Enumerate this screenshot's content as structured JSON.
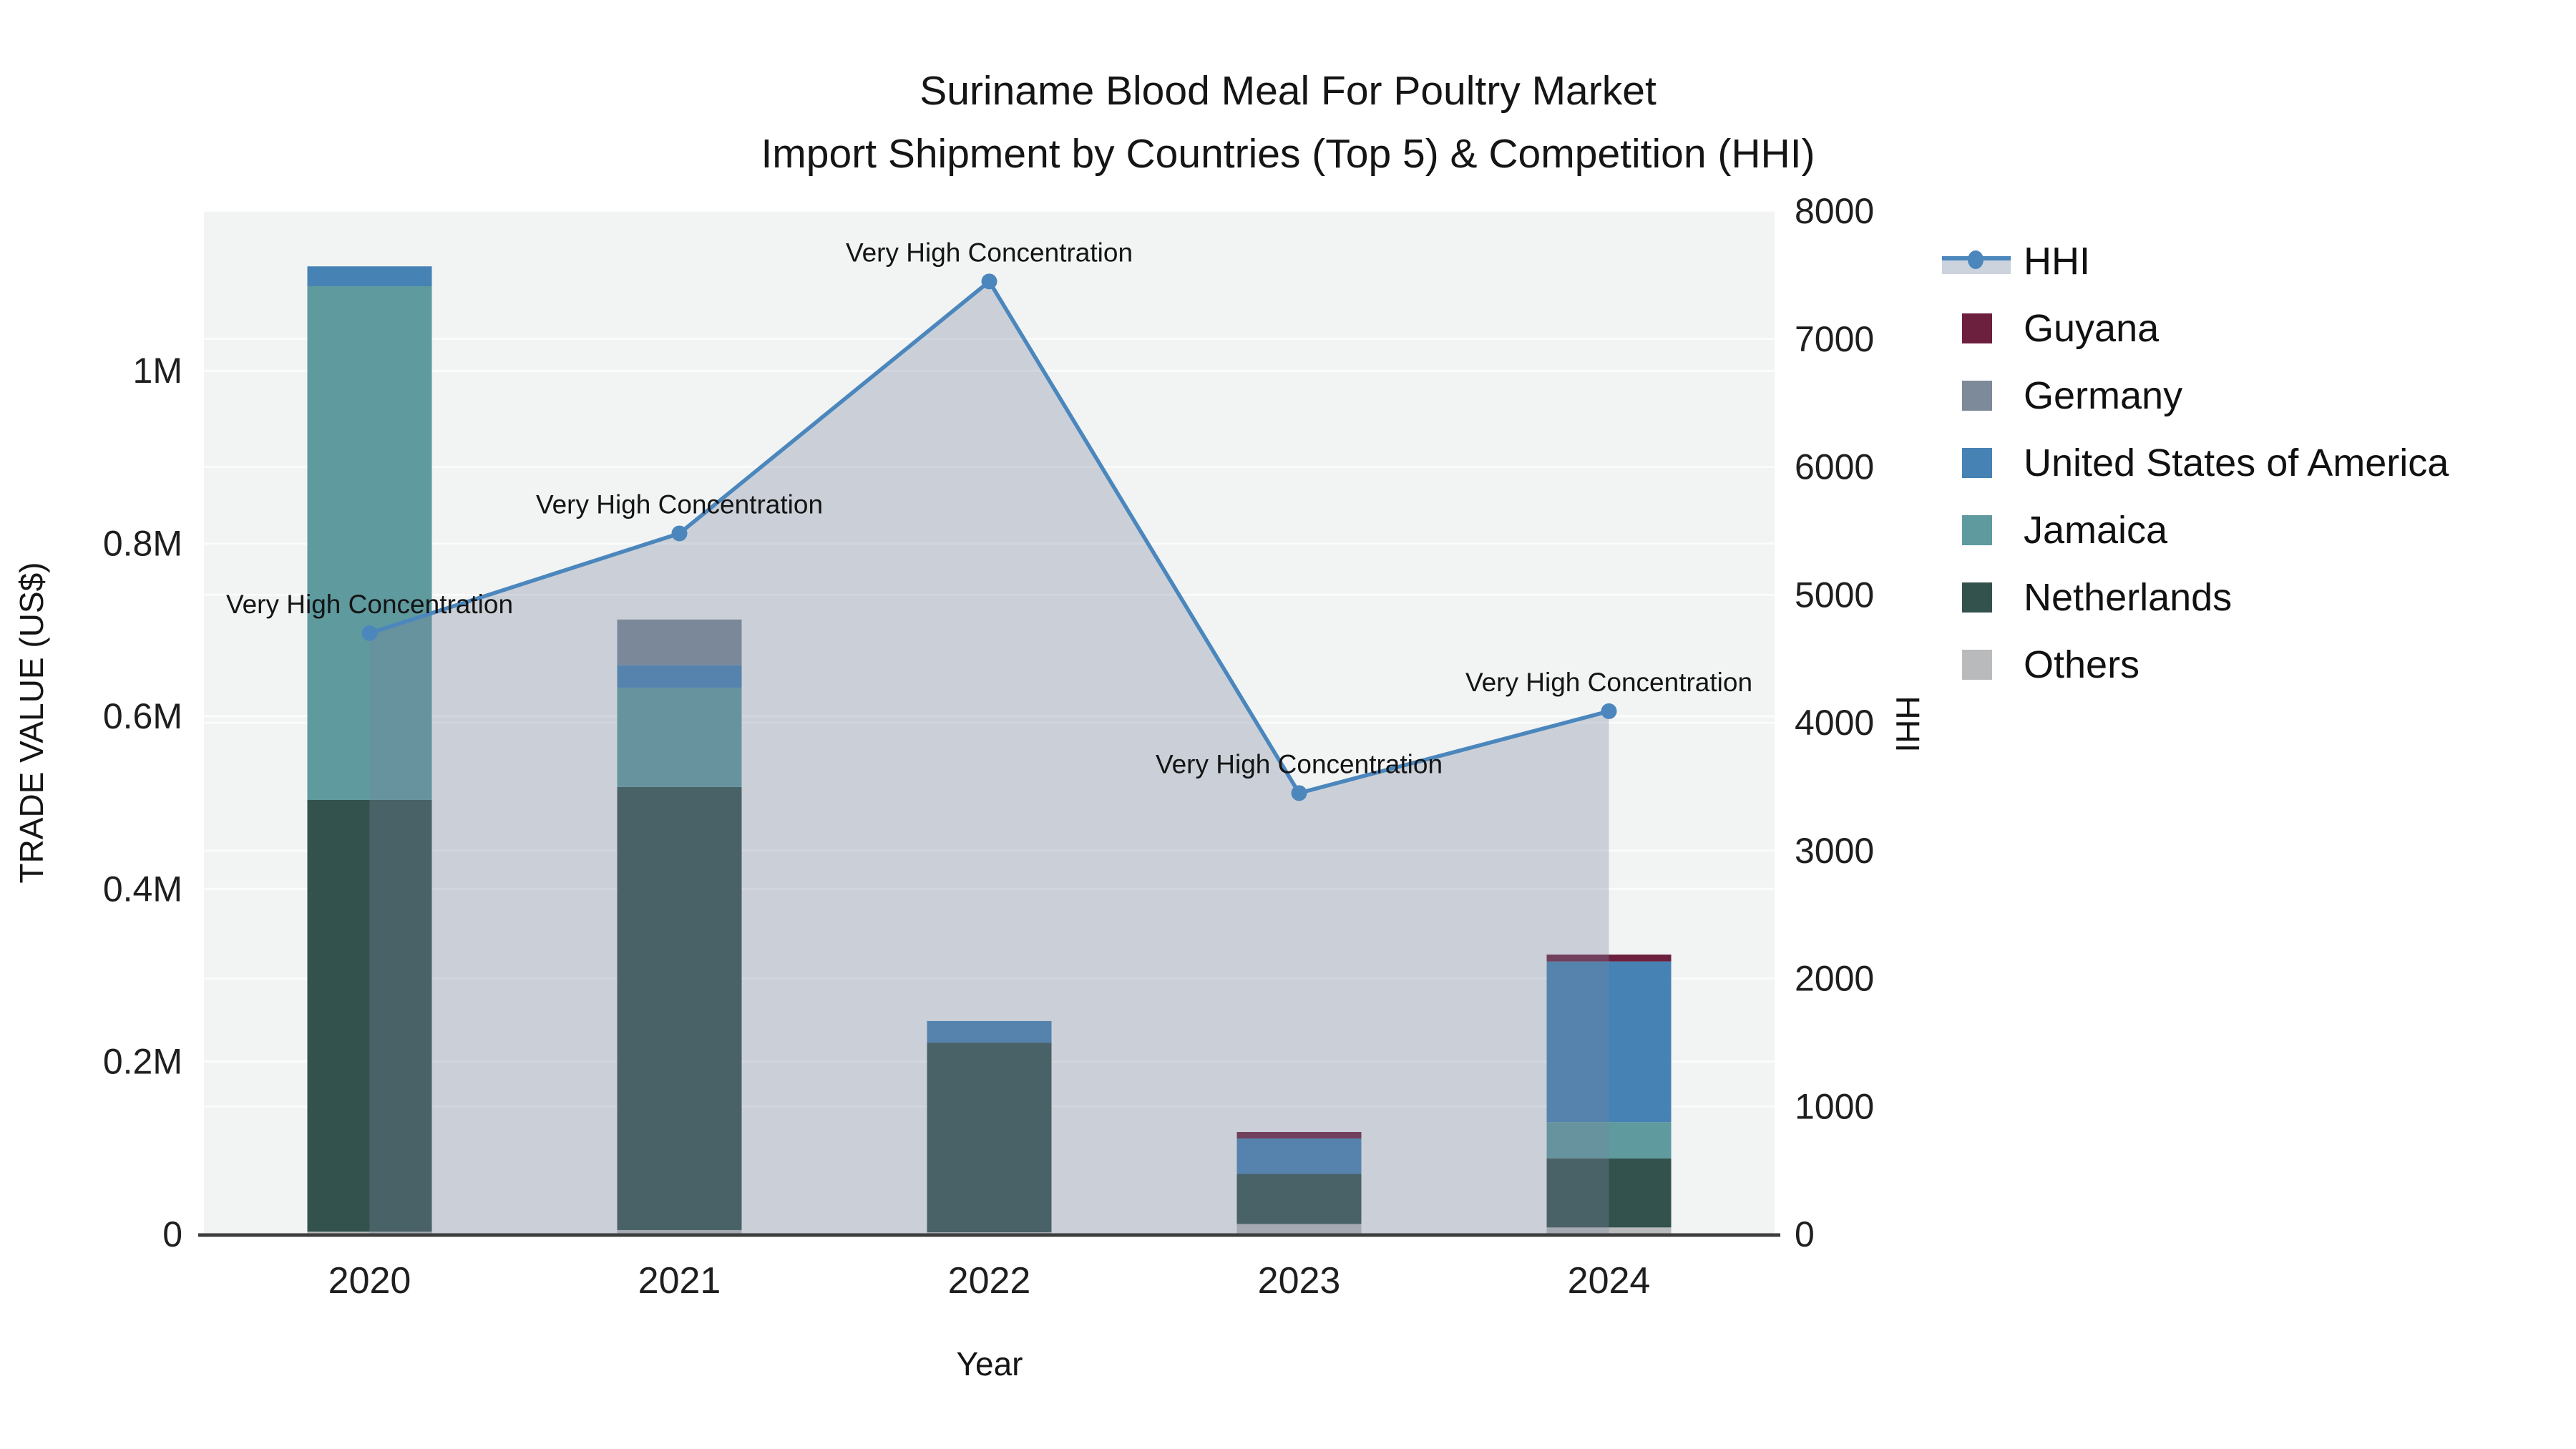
{
  "chart_data": {
    "type": "bar+line",
    "title_line1": "Suriname Blood Meal For Poultry Market",
    "title_line2": "Import Shipment by Countries (Top 5) & Competition (HHI)",
    "categories": [
      "2020",
      "2021",
      "2022",
      "2023",
      "2024"
    ],
    "x": {
      "label": "Year"
    },
    "y_left": {
      "label": "TRADE VALUE (US$)",
      "max": 1185000,
      "ticks": [
        {
          "v": 0,
          "label": "0"
        },
        {
          "v": 200000,
          "label": "0.2M"
        },
        {
          "v": 400000,
          "label": "0.4M"
        },
        {
          "v": 600000,
          "label": "0.6M"
        },
        {
          "v": 800000,
          "label": "0.8M"
        },
        {
          "v": 1000000,
          "label": "1M"
        }
      ]
    },
    "y_right": {
      "label": "HHI",
      "max": 8000,
      "ticks": [
        {
          "v": 0,
          "label": "0"
        },
        {
          "v": 1000,
          "label": "1000"
        },
        {
          "v": 2000,
          "label": "2000"
        },
        {
          "v": 3000,
          "label": "3000"
        },
        {
          "v": 4000,
          "label": "4000"
        },
        {
          "v": 5000,
          "label": "5000"
        },
        {
          "v": 6000,
          "label": "6000"
        },
        {
          "v": 7000,
          "label": "7000"
        },
        {
          "v": 8000,
          "label": "8000"
        }
      ]
    },
    "stack_order": [
      "Others",
      "Netherlands",
      "Jamaica",
      "United States of America",
      "Germany",
      "Guyana"
    ],
    "series": [
      {
        "name": "Guyana",
        "color": "#6d1f3e",
        "values": [
          0,
          0,
          0,
          7500,
          8000
        ]
      },
      {
        "name": "Germany",
        "color": "#7d8a99",
        "values": [
          0,
          53000,
          0,
          0,
          0
        ]
      },
      {
        "name": "United States of America",
        "color": "#4682b4",
        "values": [
          23000,
          26000,
          25000,
          41000,
          186000
        ]
      },
      {
        "name": "Jamaica",
        "color": "#5e9a9e",
        "values": [
          595000,
          115000,
          0,
          0,
          42000
        ]
      },
      {
        "name": "Netherlands",
        "color": "#33524d",
        "values": [
          500000,
          513000,
          219500,
          58000,
          80000
        ]
      },
      {
        "name": "Others",
        "color": "#b9babb",
        "values": [
          3000,
          5000,
          2500,
          12000,
          8000
        ]
      }
    ],
    "line_series": {
      "name": "HHI",
      "color": "#4b87bd",
      "fill": "rgba(120,135,160,0.32)",
      "values": [
        4700,
        5480,
        7450,
        3450,
        4090
      ]
    },
    "annotations": [
      {
        "category": "2020",
        "text": "Very High Concentration"
      },
      {
        "category": "2021",
        "text": "Very High Concentration"
      },
      {
        "category": "2022",
        "text": "Very High Concentration"
      },
      {
        "category": "2023",
        "text": "Very High Concentration"
      },
      {
        "category": "2024",
        "text": "Very High Concentration"
      }
    ],
    "legend": [
      {
        "label": "HHI",
        "kind": "line",
        "color": "#4b87bd",
        "band": "#ccd3dc"
      },
      {
        "label": "Guyana",
        "kind": "bar",
        "color": "#6d1f3e"
      },
      {
        "label": "Germany",
        "kind": "bar",
        "color": "#7d8a99"
      },
      {
        "label": "United States of America",
        "kind": "bar",
        "color": "#4682b4"
      },
      {
        "label": "Jamaica",
        "kind": "bar",
        "color": "#5e9a9e"
      },
      {
        "label": "Netherlands",
        "kind": "bar",
        "color": "#33524d"
      },
      {
        "label": "Others",
        "kind": "bar",
        "color": "#b9babb"
      }
    ],
    "style": {
      "panel_bg": "#f2f3f3",
      "grid_color": "#fcfcfc",
      "axis_line_color": "#3d3d3d",
      "text_color": "#1f1f1f"
    }
  }
}
